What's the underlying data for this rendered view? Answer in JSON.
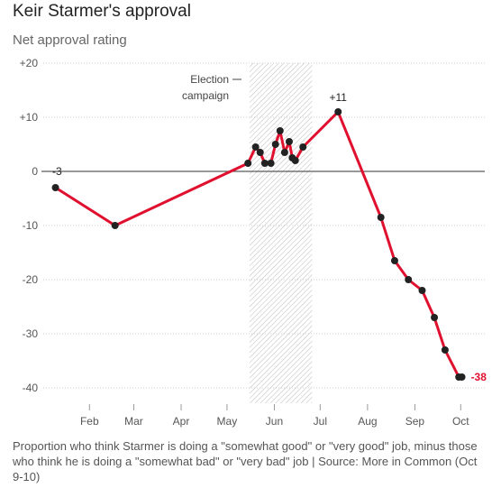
{
  "header": {
    "title": "Keir Starmer's approval",
    "subtitle": "Net approval rating"
  },
  "footnote": "Proportion who think Starmer is doing a \"somewhat good\" or \"very good\" job, minus those who think he is doing a \"somewhat bad\" or \"very bad\" job  |  Source: More in Common (Oct 9-10)",
  "chart_data": {
    "type": "line",
    "title": "Keir Starmer's approval",
    "subtitle": "Net approval rating",
    "ylabel": "",
    "xlabel": "",
    "ylim": [
      -42,
      20
    ],
    "xlim": [
      "2024-01-10",
      "2024-10-25"
    ],
    "y_ticks": [
      20,
      10,
      0,
      -10,
      -20,
      -30,
      -40
    ],
    "y_tick_labels": [
      "+20",
      "+10",
      "0",
      "-10",
      "-20",
      "-30",
      "-40"
    ],
    "x_ticks": [
      "2024-02-01",
      "2024-03-01",
      "2024-04-01",
      "2024-05-01",
      "2024-06-01",
      "2024-07-01",
      "2024-08-01",
      "2024-09-01",
      "2024-10-01"
    ],
    "x_tick_labels": [
      "Feb",
      "Mar",
      "Apr",
      "May",
      "Jun",
      "Jul",
      "Aug",
      "Sep",
      "Oct"
    ],
    "grid": true,
    "shaded_region": {
      "label_line1": "Election",
      "label_line2": "campaign",
      "start": "2024-05-24",
      "end": "2024-07-04"
    },
    "annotations": [
      {
        "text": "-3",
        "x": "2024-01-18",
        "y": -3
      },
      {
        "text": "+11",
        "x": "2024-07-21",
        "y": 11
      },
      {
        "text": "-38",
        "x": "2024-10-10",
        "y": -38
      }
    ],
    "series": [
      {
        "color": "#e0102f",
        "marker_color": "#222222",
        "x": [
          "2024-01-18",
          "2024-02-26",
          "2024-05-23",
          "2024-05-28",
          "2024-05-31",
          "2024-06-03",
          "2024-06-07",
          "2024-06-10",
          "2024-06-13",
          "2024-06-16",
          "2024-06-19",
          "2024-06-21",
          "2024-06-23",
          "2024-06-28",
          "2024-07-21",
          "2024-08-18",
          "2024-08-27",
          "2024-09-05",
          "2024-09-14",
          "2024-09-22",
          "2024-09-29",
          "2024-10-08",
          "2024-10-10"
        ],
        "values": [
          -3,
          -10,
          1.5,
          4.5,
          3.5,
          1.5,
          1.5,
          5,
          7.5,
          3.5,
          5.5,
          2.5,
          2,
          4.5,
          11,
          -8.5,
          -16.5,
          -20,
          -22,
          -27,
          -33,
          -38,
          -38
        ]
      }
    ]
  }
}
